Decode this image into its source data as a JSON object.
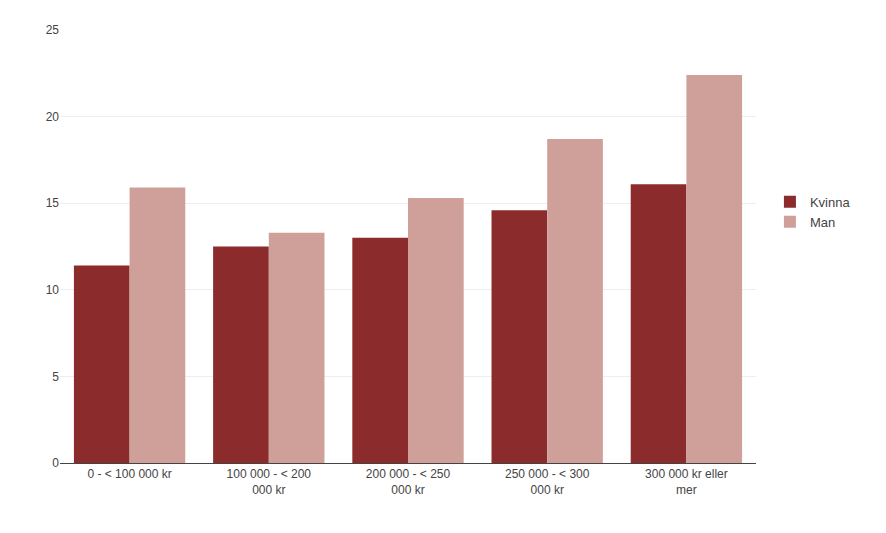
{
  "chart_data": {
    "type": "bar",
    "categories": [
      "0 - < 100 000 kr",
      "100 000 - < 200\n000 kr",
      "200 000 - < 250\n000 kr",
      "250 000 - < 300\n000 kr",
      "300 000 kr eller\nmer"
    ],
    "series": [
      {
        "name": "Kvinna",
        "color": "#8B2B2B",
        "values": [
          11.4,
          12.5,
          13.0,
          14.6,
          16.1
        ]
      },
      {
        "name": "Man",
        "color": "#CFA09A",
        "values": [
          15.9,
          13.3,
          15.3,
          18.7,
          22.4
        ]
      }
    ],
    "ylim": [
      0,
      25
    ],
    "yticks": [
      0,
      5,
      10,
      15,
      20,
      25
    ],
    "grid": true,
    "legend": "right"
  }
}
